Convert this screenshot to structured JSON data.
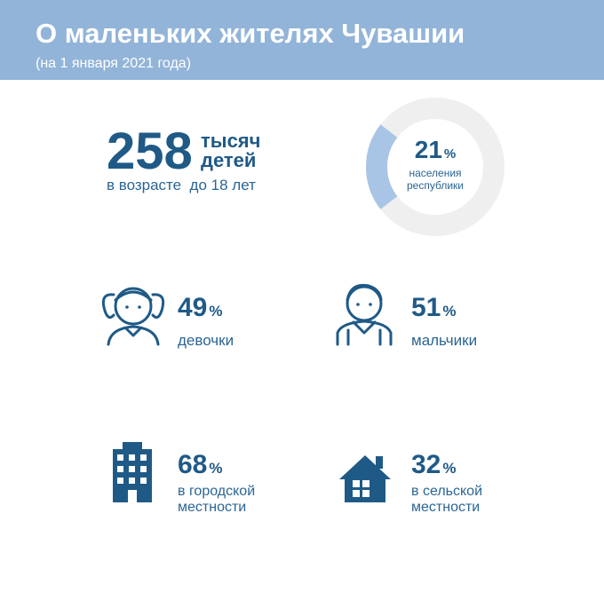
{
  "header": {
    "title": "О маленьких жителях Чувашии",
    "subtitle": "(на 1 января 2021 года)"
  },
  "total": {
    "value": 258,
    "unit_lines": [
      "тысяч",
      "детей"
    ],
    "note": "в возрасте  до 18 лет"
  },
  "share": {
    "value": 21,
    "unit": "%",
    "label_lines": [
      "населения",
      "республики"
    ]
  },
  "stats": [
    {
      "value": 49,
      "unit": "%",
      "label_lines": [
        "девочки"
      ]
    },
    {
      "value": 51,
      "unit": "%",
      "label_lines": [
        "мальчики"
      ]
    },
    {
      "value": 68,
      "unit": "%",
      "label_lines": [
        "в городской",
        "местности"
      ]
    },
    {
      "value": 32,
      "unit": "%",
      "label_lines": [
        "в сельской",
        "местности"
      ]
    }
  ]
}
